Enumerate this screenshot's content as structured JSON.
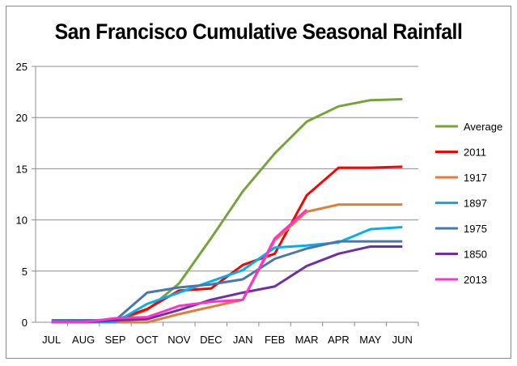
{
  "chart_data": {
    "type": "line",
    "title": "San Francisco Cumulative Seasonal Rainfall",
    "xlabel": "",
    "ylabel": "",
    "categories": [
      "JUL",
      "AUG",
      "SEP",
      "OCT",
      "NOV",
      "DEC",
      "JAN",
      "FEB",
      "MAR",
      "APR",
      "MAY",
      "JUN"
    ],
    "ylim": [
      0,
      25
    ],
    "yticks": [
      0,
      5,
      10,
      15,
      20,
      25
    ],
    "grid": true,
    "legend": "right",
    "series": [
      {
        "name": "Average",
        "color": "#77a33b",
        "values": [
          0,
          0,
          0.1,
          1.2,
          3.8,
          8.2,
          12.8,
          16.5,
          19.6,
          21.1,
          21.7,
          21.8
        ]
      },
      {
        "name": "2011",
        "color": "#ff0000",
        "values": [
          0,
          0,
          0.2,
          1.3,
          3.1,
          3.3,
          5.6,
          6.7,
          12.4,
          15.1,
          15.1,
          15.2
        ]
      },
      {
        "name": "1917",
        "color": "#e07f33",
        "values": [
          0,
          0,
          0,
          0,
          0.8,
          1.5,
          2.2,
          8.0,
          10.8,
          11.5,
          11.5,
          11.5
        ]
      },
      {
        "name": "1897",
        "color": "#00b0f0",
        "values": [
          0,
          0,
          0,
          1.8,
          2.9,
          4.0,
          5.1,
          7.3,
          7.5,
          7.8,
          9.1,
          9.3
        ]
      },
      {
        "name": "1975",
        "color": "#4a77ab",
        "values": [
          0.2,
          0.2,
          0.2,
          2.9,
          3.4,
          3.7,
          4.2,
          6.2,
          7.2,
          7.9,
          7.9,
          7.9
        ]
      },
      {
        "name": "1850",
        "color": "#7030a0",
        "values": [
          0,
          0,
          0.2,
          0.3,
          1.2,
          2.2,
          2.9,
          3.5,
          5.5,
          6.7,
          7.4,
          7.4
        ]
      },
      {
        "name": "2013",
        "color": "#ff33cc",
        "values": [
          0,
          0,
          0.4,
          0.5,
          1.6,
          2.0,
          2.2,
          8.2,
          11.0,
          null,
          null,
          null
        ]
      }
    ]
  }
}
